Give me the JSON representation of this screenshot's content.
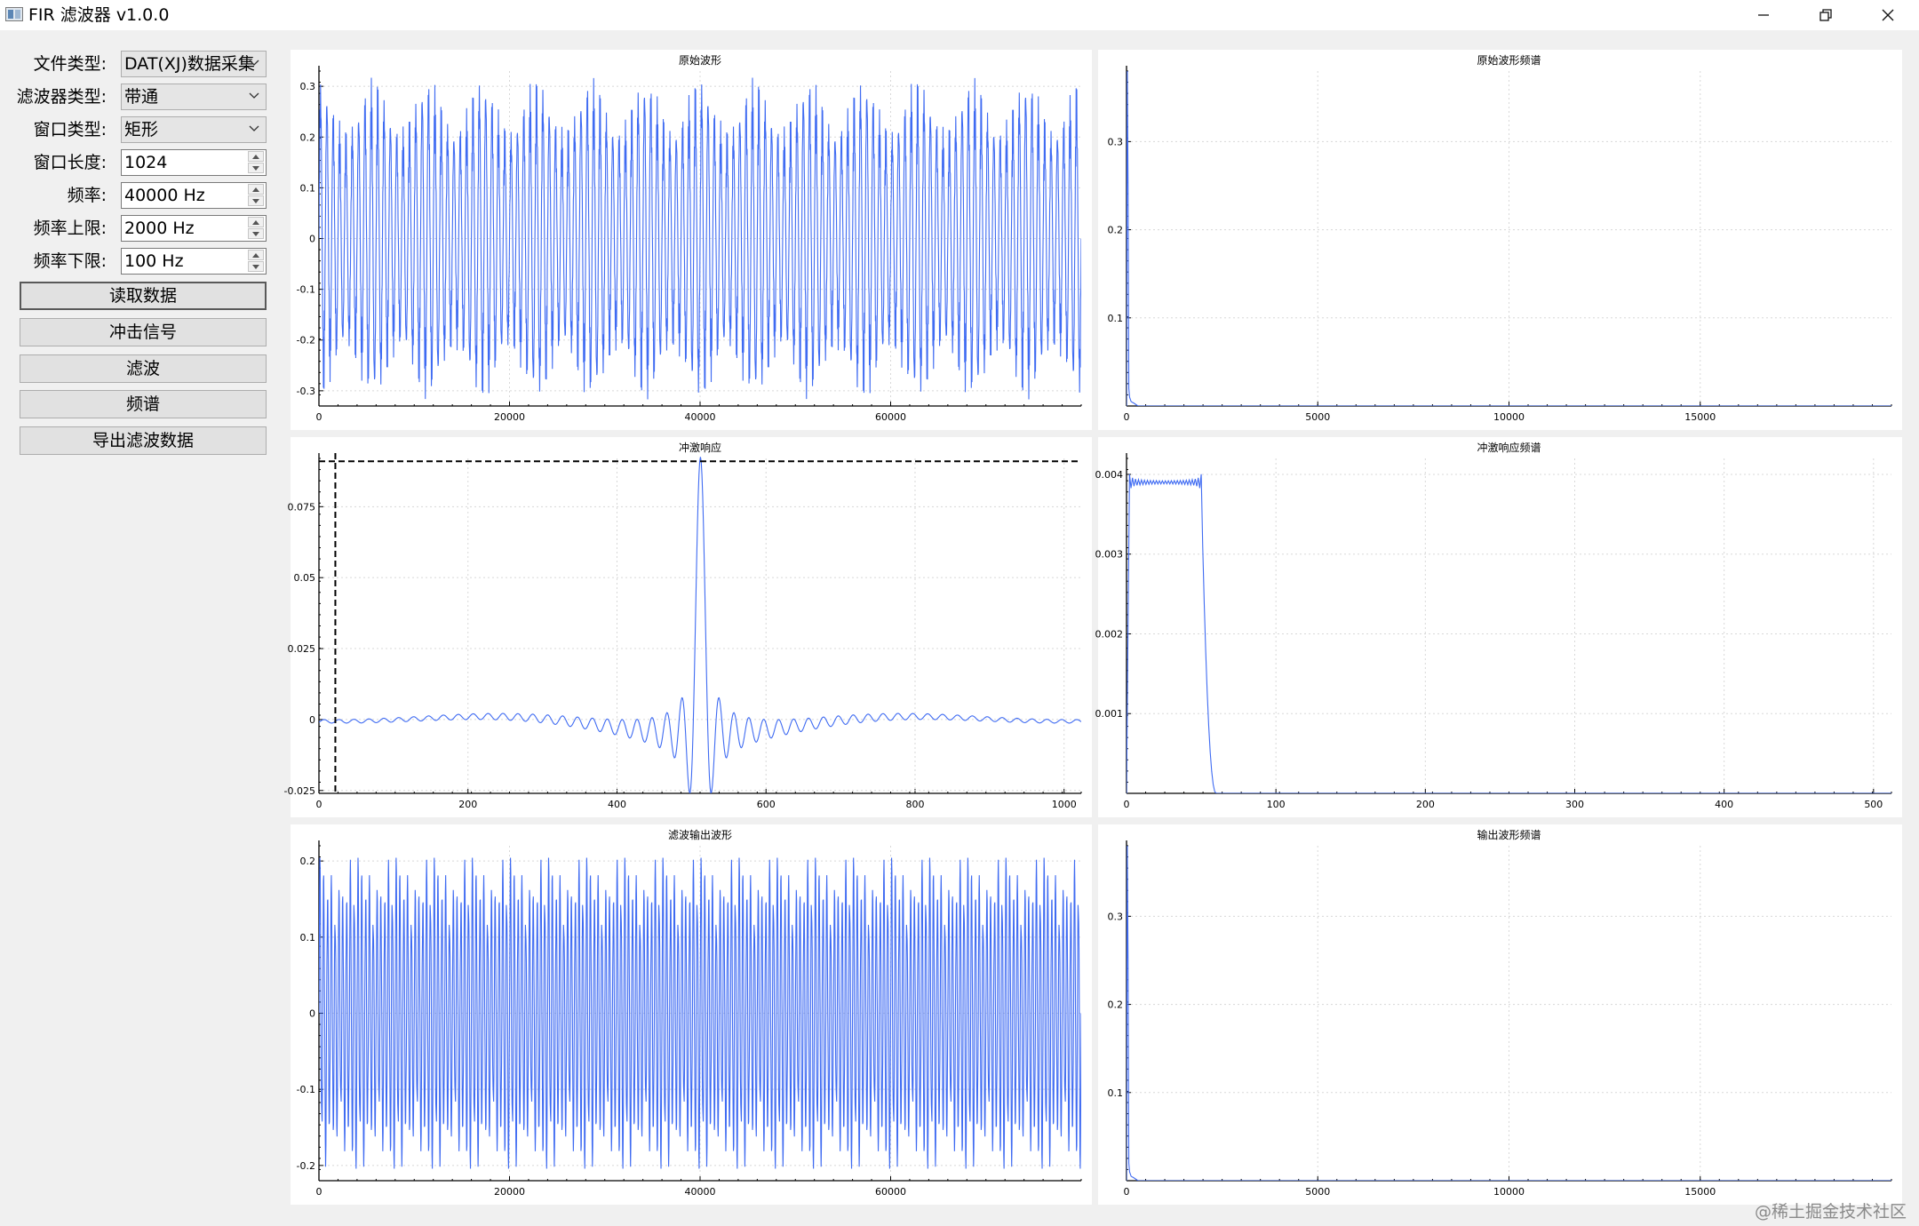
{
  "window": {
    "title": "FIR 滤波器 v1.0.0",
    "icon": "app-icon"
  },
  "window_controls": {
    "minimize_icon": "minimize-icon",
    "restore_icon": "restore-icon",
    "close_icon": "close-icon"
  },
  "controls": {
    "file_type": {
      "label": "文件类型:",
      "value": "DAT(XJ)数据采集"
    },
    "filter_type": {
      "label": "滤波器类型:",
      "value": "带通"
    },
    "window_type": {
      "label": "窗口类型:",
      "value": "矩形"
    },
    "window_length": {
      "label": "窗口长度:",
      "value": "1024"
    },
    "frequency": {
      "label": "频率:",
      "value": "40000 Hz"
    },
    "freq_upper": {
      "label": "频率上限:",
      "value": "2000 Hz"
    },
    "freq_lower": {
      "label": "频率下限:",
      "value": "100 Hz"
    }
  },
  "buttons": {
    "read_data": "读取数据",
    "impulse_signal": "冲击信号",
    "filter": "滤波",
    "spectrum": "频谱",
    "export": "导出滤波数据"
  },
  "watermark": "@稀土掘金技术社区",
  "colors": {
    "trace": "#3f6bf2",
    "grid": "#d8d8d8",
    "marker": "#000000"
  },
  "chart_data": [
    {
      "id": "orig",
      "type": "line",
      "title": "原始波形",
      "xlim": [
        0,
        79999
      ],
      "ylim": [
        -0.33,
        0.33
      ],
      "xticks": [
        0,
        20000,
        40000,
        60000
      ],
      "xtick_labels": [
        "0",
        "20000",
        "40000",
        "60000"
      ],
      "yticks": [
        -0.3,
        -0.2,
        -0.1,
        0,
        0.1,
        0.2,
        0.3
      ],
      "ytick_labels": [
        "-0.3",
        "-0.2",
        "-0.1",
        "0",
        "0.1",
        "0.2",
        "0.3"
      ],
      "series": [
        {
          "kind": "dense-oscillation",
          "amplitude": 0.32,
          "envelope_min": 0.22,
          "carrier_cycles": 120,
          "envelope_cycles": 14
        }
      ]
    },
    {
      "id": "orig_spec",
      "type": "line",
      "title": "原始波形频谱",
      "xlim": [
        0,
        20000
      ],
      "ylim": [
        0,
        0.38
      ],
      "xticks": [
        0,
        5000,
        10000,
        15000
      ],
      "xtick_labels": [
        "0",
        "5000",
        "10000",
        "15000"
      ],
      "yticks": [
        0.1,
        0.2,
        0.3
      ],
      "ytick_labels": [
        "0.1",
        "0.2",
        "0.3"
      ],
      "series": [
        {
          "kind": "spike",
          "x": [
            0,
            20,
            40,
            60,
            80,
            120,
            160,
            200,
            300,
            20000
          ],
          "y": [
            0,
            0.38,
            0.25,
            0.02,
            0.01,
            0.005,
            0.004,
            0.003,
            0,
            0
          ]
        }
      ]
    },
    {
      "id": "impulse",
      "type": "line",
      "title": "冲激响应",
      "xlim": [
        0,
        1023
      ],
      "ylim": [
        -0.026,
        0.092
      ],
      "xticks": [
        0,
        200,
        400,
        600,
        800,
        1000
      ],
      "xtick_labels": [
        "0",
        "200",
        "400",
        "600",
        "800",
        "1000"
      ],
      "yticks": [
        -0.025,
        0,
        0.025,
        0.05,
        0.075
      ],
      "ytick_labels": [
        "-0.025",
        "0",
        "0.025",
        "0.05",
        "0.075"
      ],
      "series": [
        {
          "kind": "bandpass-sinc",
          "center": 512,
          "peak": 0.0925,
          "low_cut": 100,
          "high_cut": 2000,
          "fs": 40000
        }
      ],
      "markers": {
        "vertical_x": 22,
        "horizontal_y": 0.091
      }
    },
    {
      "id": "impulse_spec",
      "type": "line",
      "title": "冲激响应频谱",
      "xlim": [
        0,
        512
      ],
      "ylim": [
        0,
        0.0042
      ],
      "xticks": [
        0,
        100,
        200,
        300,
        400,
        500
      ],
      "xtick_labels": [
        "0",
        "100",
        "200",
        "300",
        "400",
        "500"
      ],
      "yticks": [
        0.001,
        0.002,
        0.003,
        0.004
      ],
      "ytick_labels": [
        "0.001",
        "0.002",
        "0.003",
        "0.004"
      ],
      "series": [
        {
          "kind": "passband",
          "passband_level": 0.0039,
          "passband_end": 50,
          "ripple": 6e-05,
          "rolloff_end": 60
        }
      ]
    },
    {
      "id": "filtered",
      "type": "line",
      "title": "滤波输出波形",
      "xlim": [
        0,
        79999
      ],
      "ylim": [
        -0.22,
        0.22
      ],
      "xticks": [
        0,
        20000,
        40000,
        60000
      ],
      "xtick_labels": [
        "0",
        "20000",
        "40000",
        "60000"
      ],
      "yticks": [
        -0.2,
        -0.1,
        0,
        0.1,
        0.2
      ],
      "ytick_labels": [
        "-0.2",
        "-0.1",
        "0",
        "0.1",
        "0.2"
      ],
      "series": [
        {
          "kind": "dense-oscillation",
          "amplitude": 0.215,
          "envelope_min": 0.17,
          "carrier_cycles": 200,
          "envelope_cycles": 20
        }
      ]
    },
    {
      "id": "filtered_spec",
      "type": "line",
      "title": "输出波形频谱",
      "xlim": [
        0,
        20000
      ],
      "ylim": [
        0,
        0.38
      ],
      "xticks": [
        0,
        5000,
        10000,
        15000
      ],
      "xtick_labels": [
        "0",
        "5000",
        "10000",
        "15000"
      ],
      "yticks": [
        0.1,
        0.2,
        0.3
      ],
      "ytick_labels": [
        "0.1",
        "0.2",
        "0.3"
      ],
      "series": [
        {
          "kind": "spike",
          "x": [
            0,
            20,
            40,
            60,
            80,
            120,
            160,
            200,
            300,
            20000
          ],
          "y": [
            0,
            0.38,
            0.25,
            0.02,
            0.01,
            0.005,
            0.004,
            0.003,
            0,
            0
          ]
        }
      ]
    }
  ]
}
